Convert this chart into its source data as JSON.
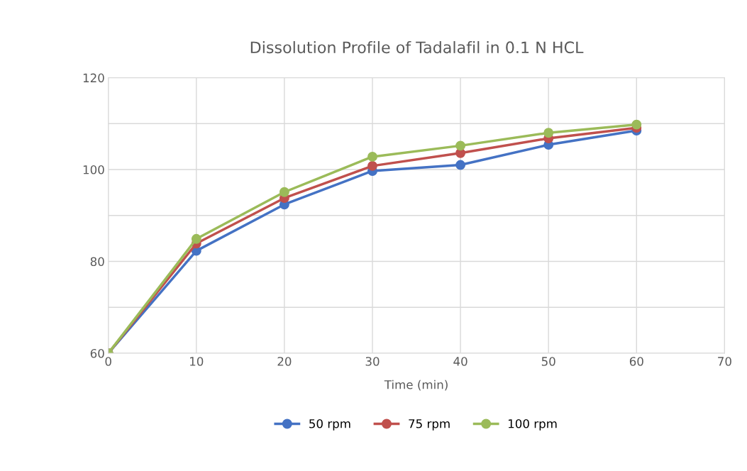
{
  "chart_data": {
    "type": "line",
    "title": "Dissolution Profile of Tadalafil in 0.1 N HCL",
    "xlabel": "Time (min)",
    "x": [
      0,
      10,
      20,
      30,
      40,
      50,
      60
    ],
    "series": [
      {
        "name": "50 rpm",
        "color": "#4472c4",
        "values": [
          60,
          82.3,
          92.4,
          99.7,
          101.0,
          105.4,
          108.5
        ]
      },
      {
        "name": "75 rpm",
        "color": "#c0504d",
        "values": [
          60,
          83.9,
          93.8,
          100.8,
          103.6,
          106.8,
          109.1
        ]
      },
      {
        "name": "100 rpm",
        "color": "#9bbb59",
        "values": [
          60,
          84.9,
          95.1,
          102.8,
          105.2,
          108.0,
          109.8
        ]
      }
    ],
    "xlim": [
      0,
      70
    ],
    "xticks": [
      0,
      10,
      20,
      30,
      40,
      50,
      60,
      70
    ],
    "ylim": [
      60,
      120
    ],
    "yticks": [
      60,
      {
        "value": 70,
        "label": null
      },
      80,
      {
        "value": 90,
        "label": null
      },
      100,
      {
        "value": 110,
        "label": null
      },
      120
    ],
    "grid": true,
    "legend": "bottom",
    "marker": "circle",
    "line_style": "solid"
  }
}
